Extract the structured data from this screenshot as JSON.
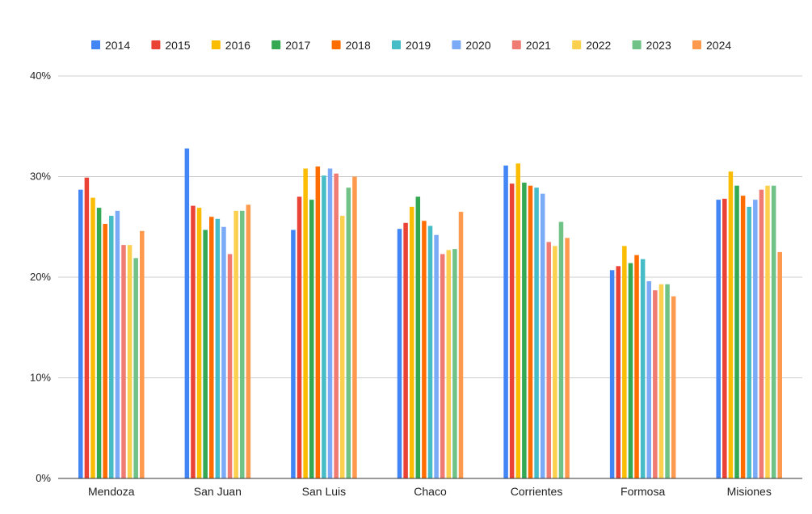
{
  "chart_data": {
    "type": "bar",
    "title": "",
    "xlabel": "",
    "ylabel": "",
    "ylim": [
      0,
      40
    ],
    "yticks": [
      0,
      10,
      20,
      30,
      40
    ],
    "ytick_labels": [
      "0%",
      "10%",
      "20%",
      "30%",
      "40%"
    ],
    "grid": true,
    "legend_position": "top",
    "categories": [
      "Mendoza",
      "San Juan",
      "San Luis",
      "Chaco",
      "Corrientes",
      "Formosa",
      "Misiones"
    ],
    "series": [
      {
        "name": "2014",
        "color": "#4285f4",
        "values": [
          28.7,
          32.8,
          24.7,
          24.8,
          31.1,
          20.7,
          27.7
        ]
      },
      {
        "name": "2015",
        "color": "#ea4335",
        "values": [
          29.9,
          27.1,
          28.0,
          25.4,
          29.3,
          21.1,
          27.8
        ]
      },
      {
        "name": "2016",
        "color": "#fbbc04",
        "values": [
          27.9,
          26.9,
          30.8,
          27.0,
          31.3,
          23.1,
          30.5
        ]
      },
      {
        "name": "2017",
        "color": "#34a853",
        "values": [
          26.9,
          24.7,
          27.7,
          28.0,
          29.4,
          21.4,
          29.1
        ]
      },
      {
        "name": "2018",
        "color": "#ff6d01",
        "values": [
          25.3,
          26.0,
          31.0,
          25.6,
          29.1,
          22.2,
          28.1
        ]
      },
      {
        "name": "2019",
        "color": "#46bdc6",
        "values": [
          26.1,
          25.8,
          30.1,
          25.1,
          28.9,
          21.8,
          27.0
        ]
      },
      {
        "name": "2020",
        "color": "#7baaf7",
        "values": [
          26.6,
          25.0,
          30.8,
          24.2,
          28.3,
          19.6,
          27.7
        ]
      },
      {
        "name": "2021",
        "color": "#f07b72",
        "values": [
          23.2,
          22.3,
          30.3,
          22.3,
          23.5,
          18.7,
          28.7
        ]
      },
      {
        "name": "2022",
        "color": "#fcd04f",
        "values": [
          23.2,
          26.6,
          26.1,
          22.7,
          23.1,
          19.3,
          29.1
        ]
      },
      {
        "name": "2023",
        "color": "#71c287",
        "values": [
          21.9,
          26.6,
          28.9,
          22.8,
          25.5,
          19.3,
          29.1
        ]
      },
      {
        "name": "2024",
        "color": "#ff994d",
        "values": [
          24.6,
          27.2,
          30.0,
          26.5,
          23.9,
          18.1,
          22.5
        ]
      }
    ]
  }
}
